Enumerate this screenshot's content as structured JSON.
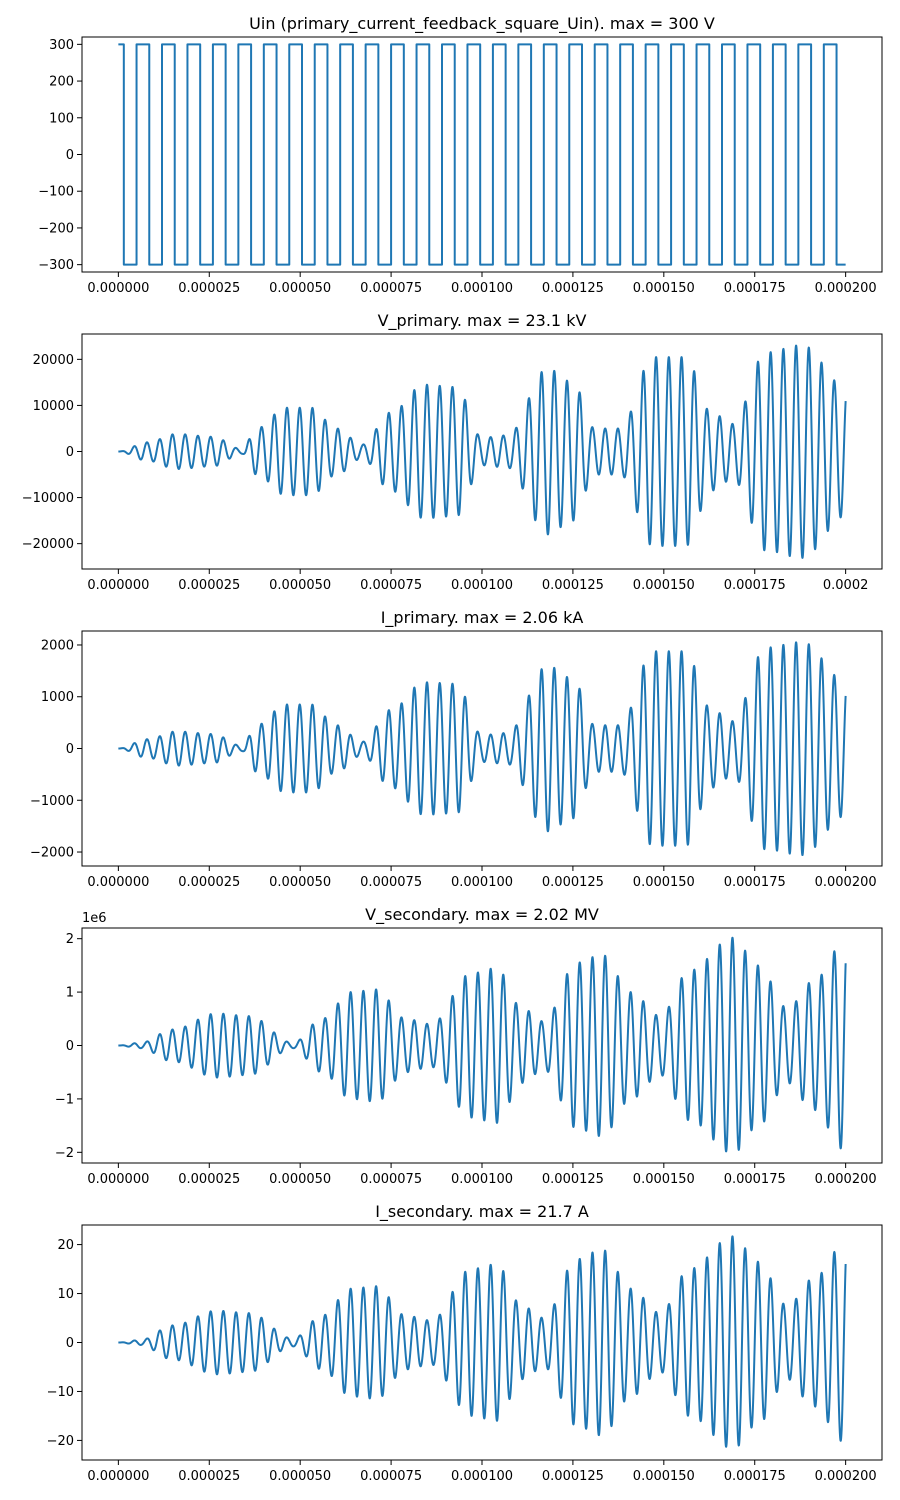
{
  "line_color": "#1f77b4",
  "chart_data": [
    {
      "type": "line",
      "waveform": "square",
      "title": "Uin (primary_current_feedback_square_Uin). max = 300 V",
      "xlabel": "",
      "ylabel": "",
      "xlim": [
        -1e-05,
        0.00021
      ],
      "ylim": [
        -320,
        320
      ],
      "x_ticks": [
        0,
        2.5e-05,
        5e-05,
        7.5e-05,
        0.0001,
        0.000125,
        0.00015,
        0.000175,
        0.0002
      ],
      "x_tick_labels": [
        "0.000000",
        "0.000025",
        "0.000050",
        "0.000075",
        "0.000100",
        "0.000125",
        "0.000150",
        "0.000175",
        "0.000200"
      ],
      "y_ticks": [
        -300,
        -200,
        -100,
        0,
        100,
        200,
        300
      ],
      "y_tick_labels": [
        "−300",
        "−200",
        "−100",
        "0",
        "100",
        "200",
        "300"
      ],
      "offset_label": "",
      "amplitude": 300,
      "x_start": 0,
      "x_end": 0.0002,
      "first_edge": 1.5e-06,
      "switching_period": 3.5e-06
    },
    {
      "type": "line",
      "waveform": "beating_oscillation",
      "title": "V_primary. max = 23.1 kV",
      "xlabel": "",
      "ylabel": "",
      "xlim": [
        -1e-05,
        0.00021
      ],
      "ylim": [
        -25500,
        25500
      ],
      "x_ticks": [
        0,
        2.5e-05,
        5e-05,
        7.5e-05,
        0.0001,
        0.000125,
        0.00015,
        0.000175,
        0.0002
      ],
      "x_tick_labels": [
        "0.000000",
        "0.000025",
        "0.000050",
        "0.000075",
        "0.000100",
        "0.000125",
        "0.000150",
        "0.000175",
        "0.0002"
      ],
      "y_ticks": [
        -20000,
        -10000,
        0,
        10000,
        20000
      ],
      "y_tick_labels": [
        "−20000",
        "−10000",
        "0",
        "10000",
        "20000"
      ],
      "offset_label": "",
      "oscillation_period": 3.5e-06,
      "envelope_x": [
        0,
        8e-06,
        1.6e-05,
        2.6e-05,
        3.4e-05,
        3.8e-05,
        4.6e-05,
        5.3e-05,
        6e-05,
        6.7e-05,
        7.5e-05,
        8.4e-05,
        9.3e-05,
        0.0001,
        0.000107,
        0.000118,
        0.000125,
        0.000131,
        0.000138,
        0.000147,
        0.000156,
        0.000163,
        0.000169,
        0.000178,
        0.000188,
        0.0002
      ],
      "envelope_y": [
        0,
        2000,
        3800,
        3200,
        500,
        5000,
        9500,
        9500,
        5000,
        1500,
        8500,
        14500,
        14000,
        3000,
        3500,
        18000,
        15000,
        5000,
        5000,
        20500,
        20500,
        8500,
        6000,
        21500,
        23100,
        14000
      ]
    },
    {
      "type": "line",
      "waveform": "beating_oscillation",
      "title": "I_primary. max = 2.06 kA",
      "xlabel": "",
      "ylabel": "",
      "xlim": [
        -1e-05,
        0.00021
      ],
      "ylim": [
        -2270,
        2270
      ],
      "x_ticks": [
        0,
        2.5e-05,
        5e-05,
        7.5e-05,
        0.0001,
        0.000125,
        0.00015,
        0.000175,
        0.0002
      ],
      "x_tick_labels": [
        "0.000000",
        "0.000025",
        "0.000050",
        "0.000075",
        "0.000100",
        "0.000125",
        "0.000150",
        "0.000175",
        "0.000200"
      ],
      "y_ticks": [
        -2000,
        -1000,
        0,
        1000,
        2000
      ],
      "y_tick_labels": [
        "−2000",
        "−1000",
        "0",
        "1000",
        "2000"
      ],
      "offset_label": "",
      "oscillation_period": 3.5e-06,
      "envelope_x": [
        0,
        8e-06,
        1.6e-05,
        2.6e-05,
        3.4e-05,
        3.8e-05,
        4.6e-05,
        5.3e-05,
        6e-05,
        6.7e-05,
        7.5e-05,
        8.4e-05,
        9.3e-05,
        0.0001,
        0.000107,
        0.000118,
        0.000125,
        0.000131,
        0.000138,
        0.000147,
        0.000156,
        0.000163,
        0.000169,
        0.000178,
        0.000188,
        0.0002
      ],
      "envelope_y": [
        0,
        180,
        330,
        280,
        50,
        450,
        850,
        850,
        450,
        130,
        750,
        1280,
        1250,
        260,
        300,
        1600,
        1350,
        450,
        450,
        1880,
        1880,
        760,
        530,
        1950,
        2060,
        1300
      ]
    },
    {
      "type": "line",
      "waveform": "beating_oscillation",
      "title": "V_secondary. max = 2.02 MV",
      "xlabel": "",
      "ylabel": "",
      "xlim": [
        -1e-05,
        0.00021
      ],
      "ylim": [
        -2.2,
        2.2
      ],
      "x_ticks": [
        0,
        2.5e-05,
        5e-05,
        7.5e-05,
        0.0001,
        0.000125,
        0.00015,
        0.000175,
        0.0002
      ],
      "x_tick_labels": [
        "0.000000",
        "0.000025",
        "0.000050",
        "0.000075",
        "0.000100",
        "0.000125",
        "0.000150",
        "0.000175",
        "0.000200"
      ],
      "y_ticks": [
        -2,
        -1,
        0,
        1,
        2
      ],
      "y_tick_labels": [
        "−2",
        "−1",
        "0",
        "1",
        "2"
      ],
      "offset_label": "1e6",
      "oscillation_period": 3.5e-06,
      "envelope_x": [
        0,
        6e-06,
        1.5e-05,
        2.7e-05,
        3.6e-05,
        4.8e-05,
        5.6e-05,
        6.4e-05,
        7.1e-05,
        7.9e-05,
        8.6e-05,
        9.7e-05,
        0.000104,
        0.000111,
        0.000117,
        0.000126,
        0.000133,
        0.000141,
        0.000149,
        0.000157,
        0.000169,
        0.000176,
        0.000184,
        0.000191,
        0.0002
      ],
      "envelope_y": [
        0,
        0.05,
        0.3,
        0.6,
        0.55,
        0.05,
        0.5,
        1.0,
        1.05,
        0.5,
        0.4,
        1.35,
        1.45,
        0.7,
        0.45,
        1.55,
        1.7,
        1.0,
        0.55,
        1.4,
        2.02,
        1.5,
        0.7,
        1.2,
        1.97
      ]
    },
    {
      "type": "line",
      "waveform": "beating_oscillation",
      "title": "I_secondary. max = 21.7 A",
      "xlabel": "",
      "ylabel": "",
      "xlim": [
        -1e-05,
        0.00021
      ],
      "ylim": [
        -24,
        24
      ],
      "x_ticks": [
        0,
        2.5e-05,
        5e-05,
        7.5e-05,
        0.0001,
        0.000125,
        0.00015,
        0.000175,
        0.0002
      ],
      "x_tick_labels": [
        "0.000000",
        "0.000025",
        "0.000050",
        "0.000075",
        "0.000100",
        "0.000125",
        "0.000150",
        "0.000175",
        "0.000200"
      ],
      "y_ticks": [
        -20,
        -10,
        0,
        10,
        20
      ],
      "y_tick_labels": [
        "−20",
        "−10",
        "0",
        "10",
        "20"
      ],
      "offset_label": "",
      "oscillation_period": 3.5e-06,
      "envelope_x": [
        0,
        6e-06,
        1.5e-05,
        2.7e-05,
        3.6e-05,
        4.8e-05,
        5.6e-05,
        6.4e-05,
        7.1e-05,
        7.9e-05,
        8.6e-05,
        9.7e-05,
        0.000104,
        0.000111,
        0.000117,
        0.000126,
        0.000133,
        0.000141,
        0.000149,
        0.000157,
        0.000169,
        0.000176,
        0.000184,
        0.000191,
        0.0002
      ],
      "envelope_y": [
        0,
        0.5,
        3.5,
        6.5,
        6.0,
        0.8,
        5.5,
        11.0,
        11.5,
        5.5,
        4.5,
        15.0,
        16.0,
        7.5,
        5.0,
        17.0,
        19.0,
        11.0,
        6.0,
        15.0,
        21.7,
        16.5,
        7.5,
        13.0,
        20.5
      ]
    }
  ]
}
